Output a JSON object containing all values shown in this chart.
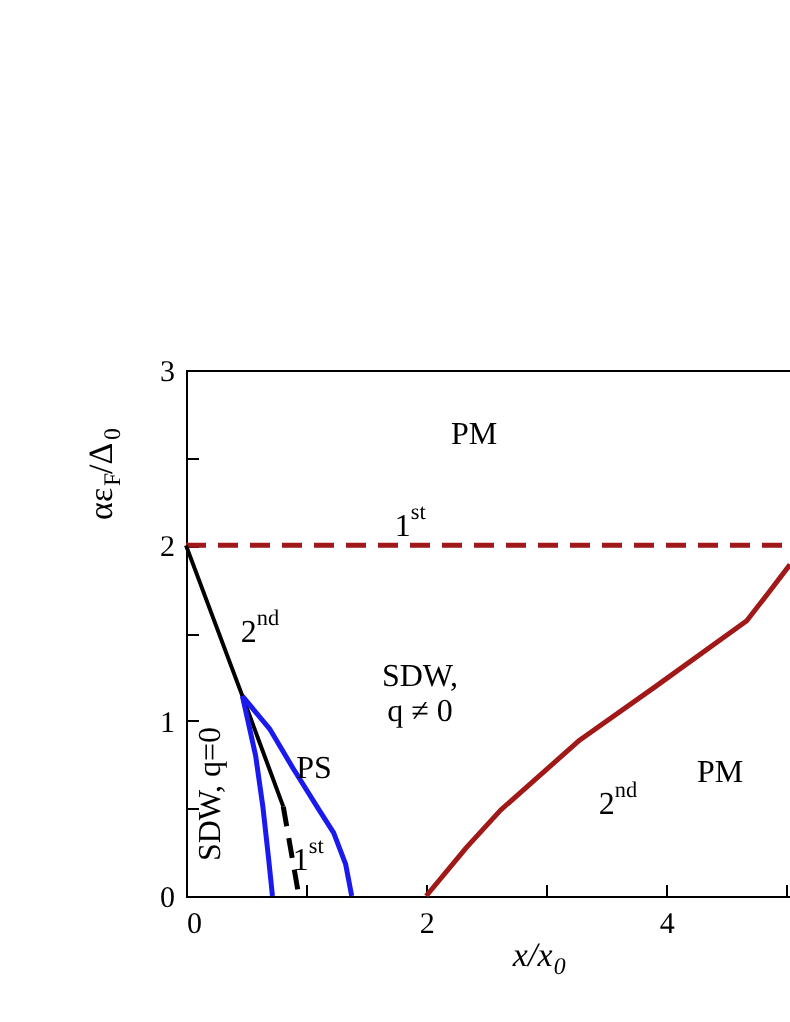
{
  "chart_data": {
    "type": "line",
    "xlabel": "x/x$_{0}$",
    "ylabel": "αε$_{F}$/Δ$_{0}$",
    "xlim": [
      0,
      5.03
    ],
    "xticks": [
      0,
      {
        "value": 1,
        "label": null
      },
      2,
      {
        "value": 3,
        "label": null
      },
      4,
      {
        "value": 5,
        "label": null
      }
    ],
    "ylim": [
      0,
      3
    ],
    "yticks": [
      0,
      {
        "value": 0.5,
        "label": null
      },
      1,
      {
        "value": 1.5,
        "label": null
      },
      2,
      {
        "value": 2.5,
        "label": null
      },
      3
    ],
    "grid": false,
    "marker": "none",
    "series": [
      {
        "color": "#a01818",
        "line_style": "dashed",
        "x": [
          0,
          5.03
        ],
        "values": [
          2,
          2
        ]
      },
      {
        "color": "#000000",
        "line_style": "solid",
        "x": [
          0,
          0.47,
          0.81
        ],
        "values": [
          2,
          1.14,
          0.51
        ]
      },
      {
        "color": "#000000",
        "line_style": "dashed",
        "x": [
          0.81,
          0.94
        ],
        "values": [
          0.51,
          0
        ]
      },
      {
        "color": "#1a1aee",
        "line_style": "solid",
        "x": [
          0.47,
          0.58,
          0.64,
          0.69,
          0.72
        ],
        "values": [
          1.14,
          0.8,
          0.51,
          0.2,
          0
        ]
      },
      {
        "color": "#1a1aee",
        "line_style": "solid",
        "x": [
          0.47,
          0.7,
          0.89,
          1.1,
          1.23,
          1.33,
          1.38
        ],
        "values": [
          1.14,
          0.95,
          0.73,
          0.5,
          0.36,
          0.18,
          0
        ]
      },
      {
        "color": "#a01818",
        "line_style": "solid",
        "x": [
          2,
          2.34,
          2.62,
          3.28,
          3.9,
          4.67,
          4.84,
          5.03
        ],
        "values": [
          0,
          0.28,
          0.49,
          0.89,
          1.19,
          1.57,
          1.72,
          1.89
        ]
      }
    ],
    "annotations": [
      "PM",
      "1$^{st}$",
      "2$^{nd}$",
      "SDW,\nq ≠ 0",
      "2$^{nd}$",
      "PM",
      "PS",
      "1$^{st}$",
      "SDW, q=0"
    ]
  }
}
